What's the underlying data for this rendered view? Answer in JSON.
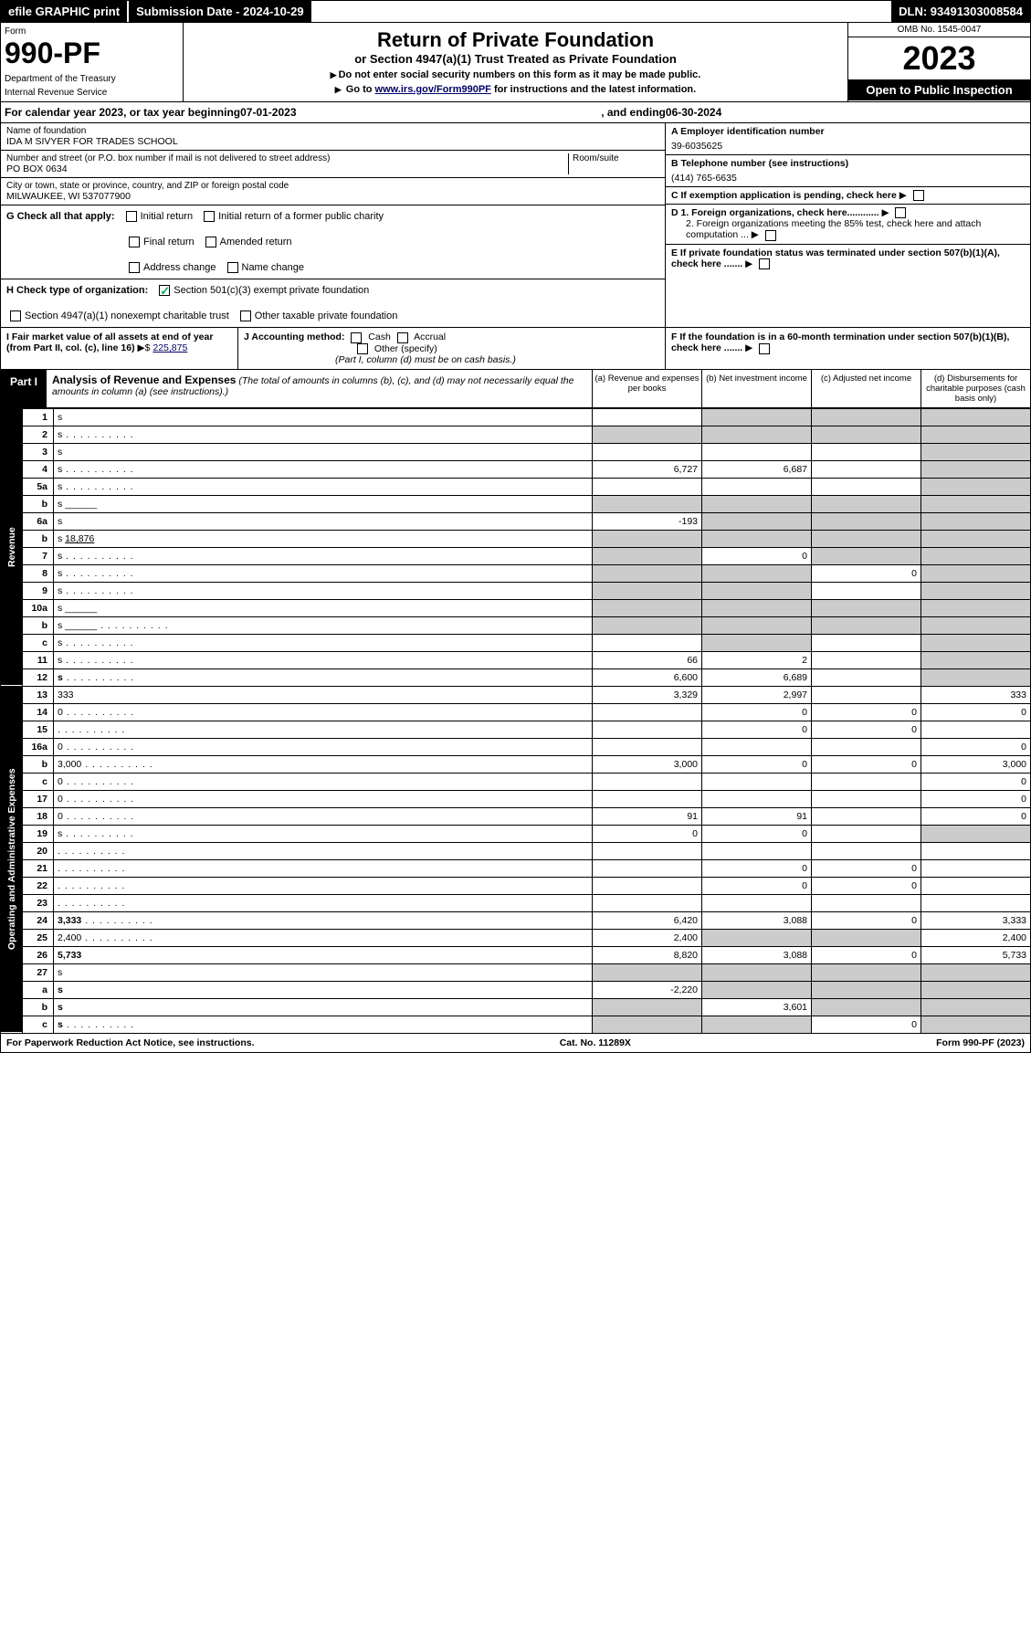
{
  "top": {
    "efile": "efile GRAPHIC print",
    "sub_date_label": "Submission Date - 2024-10-29",
    "dln": "DLN: 93491303008584"
  },
  "header": {
    "form_label": "Form",
    "form_num": "990-PF",
    "dept": "Department of the Treasury",
    "irs": "Internal Revenue Service",
    "title": "Return of Private Foundation",
    "subtitle": "or Section 4947(a)(1) Trust Treated as Private Foundation",
    "note1": "Do not enter social security numbers on this form as it may be made public.",
    "note2_pre": "Go to ",
    "note2_link": "www.irs.gov/Form990PF",
    "note2_post": " for instructions and the latest information.",
    "omb": "OMB No. 1545-0047",
    "year": "2023",
    "open": "Open to Public Inspection"
  },
  "cal": {
    "pre": "For calendar year 2023, or tax year beginning ",
    "begin": "07-01-2023",
    "mid": ", and ending ",
    "end": "06-30-2024"
  },
  "info": {
    "name_label": "Name of foundation",
    "name": "IDA M SIVYER FOR TRADES SCHOOL",
    "addr_label": "Number and street (or P.O. box number if mail is not delivered to street address)",
    "addr": "PO BOX 0634",
    "room_label": "Room/suite",
    "city_label": "City or town, state or province, country, and ZIP or foreign postal code",
    "city": "MILWAUKEE, WI  537077900",
    "ein_label": "A Employer identification number",
    "ein": "39-6035625",
    "tel_label": "B Telephone number (see instructions)",
    "tel": "(414) 765-6635",
    "c": "C If exemption application is pending, check here",
    "d1": "D 1. Foreign organizations, check here............",
    "d2": "2. Foreign organizations meeting the 85% test, check here and attach computation ...",
    "e": "E If private foundation status was terminated under section 507(b)(1)(A), check here .......",
    "f": "F If the foundation is in a 60-month termination under section 507(b)(1)(B), check here ......."
  },
  "g": {
    "label": "G Check all that apply:",
    "opts": [
      "Initial return",
      "Final return",
      "Address change",
      "Initial return of a former public charity",
      "Amended return",
      "Name change"
    ]
  },
  "h": {
    "label": "H Check type of organization:",
    "opt1": "Section 501(c)(3) exempt private foundation",
    "opt2": "Section 4947(a)(1) nonexempt charitable trust",
    "opt3": "Other taxable private foundation"
  },
  "i": {
    "label": "I Fair market value of all assets at end of year (from Part II, col. (c), line 16)",
    "val": "225,875"
  },
  "j": {
    "label": "J Accounting method:",
    "cash": "Cash",
    "accrual": "Accrual",
    "other": "Other (specify)",
    "note": "(Part I, column (d) must be on cash basis.)"
  },
  "part1": {
    "label": "Part I",
    "title": "Analysis of Revenue and Expenses",
    "note": " (The total of amounts in columns (b), (c), and (d) may not necessarily equal the amounts in column (a) (see instructions).)",
    "col_a": "(a)  Revenue and expenses per books",
    "col_b": "(b)  Net investment income",
    "col_c": "(c)  Adjusted net income",
    "col_d": "(d)  Disbursements for charitable purposes (cash basis only)"
  },
  "vert": {
    "revenue": "Revenue",
    "expenses": "Operating and Administrative Expenses"
  },
  "rows": [
    {
      "n": "1",
      "d": "s",
      "a": "",
      "b": "s",
      "c": "s"
    },
    {
      "n": "2",
      "d": "s",
      "dots": true,
      "a": "s",
      "b": "s",
      "c": "s"
    },
    {
      "n": "3",
      "d": "s",
      "a": "",
      "b": "",
      "c": ""
    },
    {
      "n": "4",
      "d": "s",
      "dots": true,
      "a": "6,727",
      "b": "6,687",
      "c": ""
    },
    {
      "n": "5a",
      "d": "s",
      "dots": true,
      "a": "",
      "b": "",
      "c": ""
    },
    {
      "n": "b",
      "d": "s",
      "inline": true,
      "a": "s",
      "b": "s",
      "c": "s"
    },
    {
      "n": "6a",
      "d": "s",
      "a": "-193",
      "b": "s",
      "c": "s"
    },
    {
      "n": "b",
      "d": "s",
      "inline": "18,876",
      "a": "s",
      "b": "s",
      "c": "s"
    },
    {
      "n": "7",
      "d": "s",
      "dots": true,
      "a": "s",
      "b": "0",
      "c": "s"
    },
    {
      "n": "8",
      "d": "s",
      "dots": true,
      "a": "s",
      "b": "s",
      "c": "0"
    },
    {
      "n": "9",
      "d": "s",
      "dots": true,
      "a": "s",
      "b": "s",
      "c": ""
    },
    {
      "n": "10a",
      "d": "s",
      "inline": true,
      "a": "s",
      "b": "s",
      "c": "s"
    },
    {
      "n": "b",
      "d": "s",
      "dots": true,
      "inline": true,
      "a": "s",
      "b": "s",
      "c": "s"
    },
    {
      "n": "c",
      "d": "s",
      "dots": true,
      "a": "",
      "b": "s",
      "c": ""
    },
    {
      "n": "11",
      "d": "s",
      "dots": true,
      "a": "66",
      "b": "2",
      "c": ""
    },
    {
      "n": "12",
      "d": "s",
      "dots": true,
      "bold": true,
      "a": "6,600",
      "b": "6,689",
      "c": ""
    },
    {
      "n": "13",
      "d": "333",
      "a": "3,329",
      "b": "2,997",
      "c": ""
    },
    {
      "n": "14",
      "d": "0",
      "dots": true,
      "a": "",
      "b": "0",
      "c": "0"
    },
    {
      "n": "15",
      "d": "",
      "dots": true,
      "a": "",
      "b": "0",
      "c": "0"
    },
    {
      "n": "16a",
      "d": "0",
      "dots": true,
      "a": "",
      "b": "",
      "c": ""
    },
    {
      "n": "b",
      "d": "3,000",
      "dots": true,
      "a": "3,000",
      "b": "0",
      "c": "0"
    },
    {
      "n": "c",
      "d": "0",
      "dots": true,
      "a": "",
      "b": "",
      "c": ""
    },
    {
      "n": "17",
      "d": "0",
      "dots": true,
      "a": "",
      "b": "",
      "c": ""
    },
    {
      "n": "18",
      "d": "0",
      "dots": true,
      "a": "91",
      "b": "91",
      "c": ""
    },
    {
      "n": "19",
      "d": "s",
      "dots": true,
      "a": "0",
      "b": "0",
      "c": ""
    },
    {
      "n": "20",
      "d": "",
      "dots": true,
      "a": "",
      "b": "",
      "c": ""
    },
    {
      "n": "21",
      "d": "",
      "dots": true,
      "a": "",
      "b": "0",
      "c": "0"
    },
    {
      "n": "22",
      "d": "",
      "dots": true,
      "a": "",
      "b": "0",
      "c": "0"
    },
    {
      "n": "23",
      "d": "",
      "dots": true,
      "a": "",
      "b": "",
      "c": ""
    },
    {
      "n": "24",
      "d": "3,333",
      "dots": true,
      "bold": true,
      "a": "6,420",
      "b": "3,088",
      "c": "0"
    },
    {
      "n": "25",
      "d": "2,400",
      "dots": true,
      "a": "2,400",
      "b": "s",
      "c": "s"
    },
    {
      "n": "26",
      "d": "5,733",
      "bold": true,
      "a": "8,820",
      "b": "3,088",
      "c": "0"
    },
    {
      "n": "27",
      "d": "s",
      "a": "s",
      "b": "s",
      "c": "s"
    },
    {
      "n": "a",
      "d": "s",
      "bold": true,
      "a": "-2,220",
      "b": "s",
      "c": "s"
    },
    {
      "n": "b",
      "d": "s",
      "bold": true,
      "a": "s",
      "b": "3,601",
      "c": "s"
    },
    {
      "n": "c",
      "d": "s",
      "dots": true,
      "bold": true,
      "a": "s",
      "b": "s",
      "c": "0"
    }
  ],
  "footer": {
    "left": "For Paperwork Reduction Act Notice, see instructions.",
    "mid": "Cat. No. 11289X",
    "right": "Form 990-PF (2023)"
  }
}
